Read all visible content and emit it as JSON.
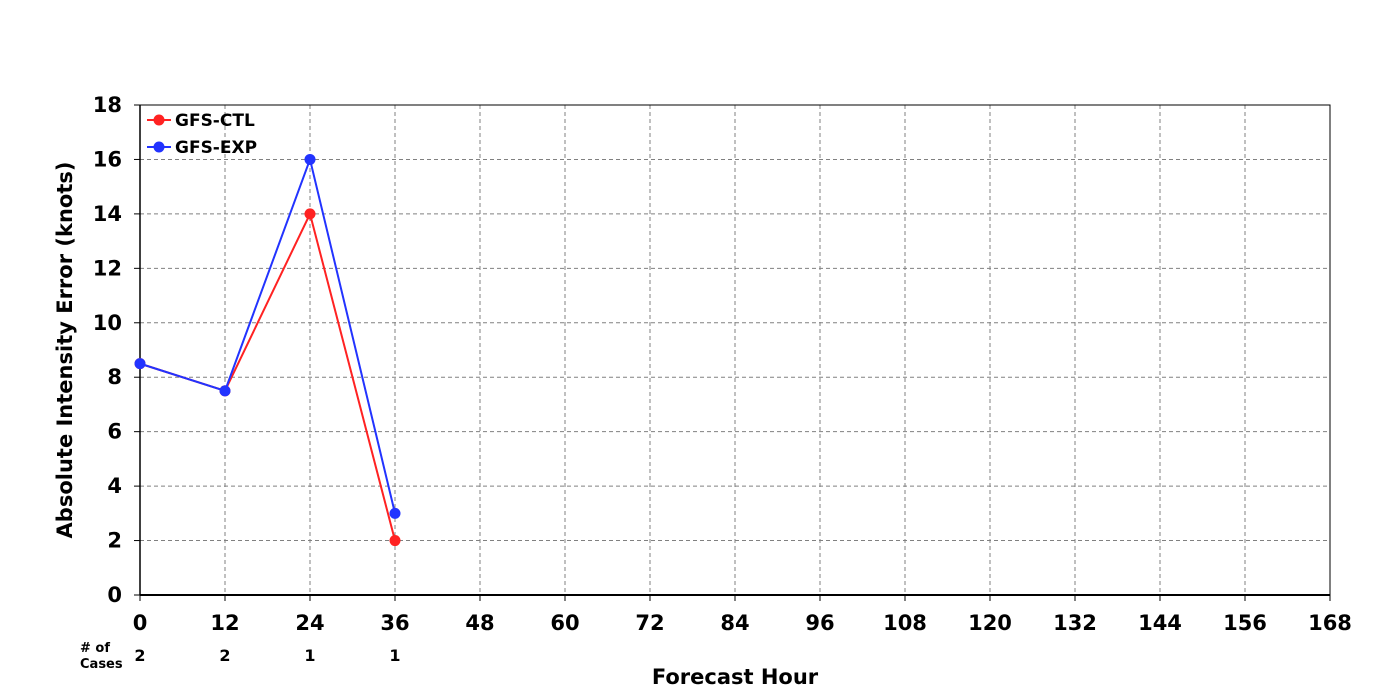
{
  "chart_data": {
    "type": "line",
    "title": "",
    "xlabel": "Forecast Hour",
    "ylabel": "Absolute Intensity Error (knots)",
    "xlim": [
      0,
      168
    ],
    "ylim": [
      0,
      18
    ],
    "x_ticks": [
      0,
      12,
      24,
      36,
      48,
      60,
      72,
      84,
      96,
      108,
      120,
      132,
      144,
      156,
      168
    ],
    "y_ticks": [
      0,
      2,
      4,
      6,
      8,
      10,
      12,
      14,
      16,
      18
    ],
    "grid": true,
    "legend_position": "top-left",
    "series": [
      {
        "name": "GFS-CTL",
        "color": "#ff2222",
        "x": [
          0,
          12,
          24,
          36
        ],
        "values": [
          8.5,
          7.5,
          14,
          2
        ]
      },
      {
        "name": "GFS-EXP",
        "color": "#2233ff",
        "x": [
          0,
          12,
          24,
          36
        ],
        "values": [
          8.5,
          7.5,
          16,
          3
        ]
      }
    ],
    "cases_label": "# of\nCases",
    "cases": [
      {
        "x": 0,
        "count": "2"
      },
      {
        "x": 12,
        "count": "2"
      },
      {
        "x": 24,
        "count": "1"
      },
      {
        "x": 36,
        "count": "1"
      }
    ]
  }
}
